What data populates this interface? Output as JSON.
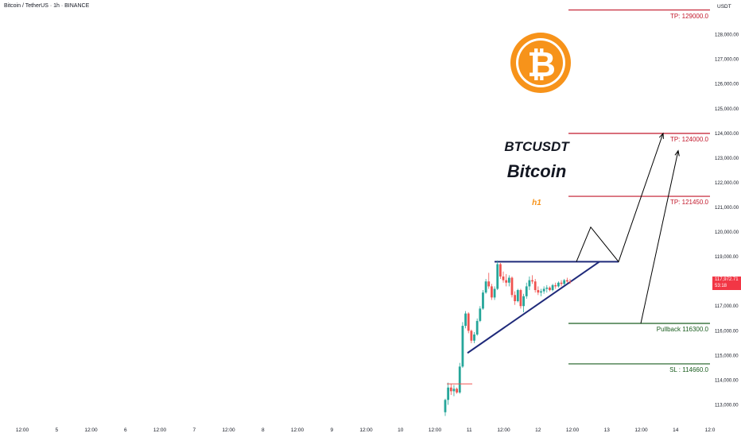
{
  "header": {
    "title": "Bitcoin / TetherUS · 1h · BINANCE",
    "currency": "USDT"
  },
  "current_price": {
    "value": "117,972.71",
    "countdown": "53:18"
  },
  "annotations": {
    "symbol": "BTCUSDT",
    "name": "Bitcoin",
    "timeframe": "h1"
  },
  "levels": [
    {
      "name": "tp3",
      "label": "TP: 129000.0",
      "price": 129000,
      "color": "#c2182b"
    },
    {
      "name": "tp2",
      "label": "TP: 124000.0",
      "price": 124000,
      "color": "#c2182b"
    },
    {
      "name": "tp1",
      "label": "TP: 121450.0",
      "price": 121450,
      "color": "#c2182b"
    },
    {
      "name": "pullback",
      "label": "Pullback 116300.0",
      "price": 116300,
      "color": "#1b5e20"
    },
    {
      "name": "sl",
      "label": "SL : 114660.0",
      "price": 114660,
      "color": "#1b5e20"
    }
  ],
  "colors": {
    "up": "#26a69a",
    "down": "#ef5350",
    "trendline": "#1f2a7a",
    "logo": "#f7931a"
  },
  "chart_data": {
    "type": "candlestick",
    "ylim": [
      112500,
      128600
    ],
    "y_ticks": [
      113000,
      114000,
      115000,
      116000,
      117000,
      118000,
      119000,
      120000,
      121000,
      122000,
      123000,
      124000,
      125000,
      126000,
      127000,
      128000
    ],
    "y_tick_labels": [
      "113,000.00",
      "114,000.00",
      "115,000.00",
      "116,000.00",
      "117,000.00",
      "118,000.00",
      "119,000.00",
      "120,000.00",
      "121,000.00",
      "122,000.00",
      "123,000.00",
      "124,000.00",
      "125,000.00",
      "126,000.00",
      "127,000.00",
      "128,000.00"
    ],
    "x_tick_labels": [
      "12:00",
      "5",
      "12:00",
      "6",
      "12:00",
      "7",
      "12:00",
      "8",
      "12:00",
      "9",
      "12:00",
      "10",
      "12:00",
      "11",
      "12:00",
      "12",
      "12:00",
      "13",
      "12:00",
      "14",
      "12:0"
    ],
    "candles": [
      {
        "o": 112700,
        "h": 113250,
        "l": 112550,
        "c": 113200
      },
      {
        "o": 113200,
        "h": 113900,
        "l": 113000,
        "c": 113700
      },
      {
        "o": 113700,
        "h": 113850,
        "l": 113400,
        "c": 113550
      },
      {
        "o": 113550,
        "h": 113800,
        "l": 113350,
        "c": 113650
      },
      {
        "o": 113650,
        "h": 113700,
        "l": 113450,
        "c": 113500
      },
      {
        "o": 113500,
        "h": 114700,
        "l": 113450,
        "c": 114550
      },
      {
        "o": 114550,
        "h": 116350,
        "l": 114500,
        "c": 116200
      },
      {
        "o": 116200,
        "h": 116800,
        "l": 116100,
        "c": 116700
      },
      {
        "o": 116700,
        "h": 116750,
        "l": 115900,
        "c": 116000
      },
      {
        "o": 116000,
        "h": 116050,
        "l": 115500,
        "c": 115600
      },
      {
        "o": 115600,
        "h": 115950,
        "l": 115500,
        "c": 115850
      },
      {
        "o": 115850,
        "h": 116500,
        "l": 115800,
        "c": 116400
      },
      {
        "o": 116400,
        "h": 117000,
        "l": 116350,
        "c": 116900
      },
      {
        "o": 116900,
        "h": 117650,
        "l": 116850,
        "c": 117550
      },
      {
        "o": 117550,
        "h": 118100,
        "l": 117500,
        "c": 118000
      },
      {
        "o": 118000,
        "h": 118350,
        "l": 117700,
        "c": 117800
      },
      {
        "o": 117800,
        "h": 117900,
        "l": 117250,
        "c": 117350
      },
      {
        "o": 117350,
        "h": 117800,
        "l": 117250,
        "c": 117700
      },
      {
        "o": 117700,
        "h": 118850,
        "l": 117650,
        "c": 118700
      },
      {
        "o": 118700,
        "h": 118750,
        "l": 118100,
        "c": 118200
      },
      {
        "o": 118200,
        "h": 118400,
        "l": 117950,
        "c": 118050
      },
      {
        "o": 118050,
        "h": 118300,
        "l": 117800,
        "c": 117950
      },
      {
        "o": 117950,
        "h": 118250,
        "l": 117800,
        "c": 118150
      },
      {
        "o": 118150,
        "h": 118200,
        "l": 117350,
        "c": 117450
      },
      {
        "o": 117450,
        "h": 117600,
        "l": 117050,
        "c": 117200
      },
      {
        "o": 117200,
        "h": 117700,
        "l": 117150,
        "c": 117650
      },
      {
        "o": 117650,
        "h": 117700,
        "l": 116900,
        "c": 117000
      },
      {
        "o": 117000,
        "h": 117500,
        "l": 116750,
        "c": 117400
      },
      {
        "o": 117400,
        "h": 117950,
        "l": 117300,
        "c": 117800
      },
      {
        "o": 117800,
        "h": 118200,
        "l": 117650,
        "c": 118050
      },
      {
        "o": 118050,
        "h": 118250,
        "l": 117900,
        "c": 118000
      },
      {
        "o": 118000,
        "h": 118100,
        "l": 117550,
        "c": 117650
      },
      {
        "o": 117650,
        "h": 117800,
        "l": 117450,
        "c": 117550
      },
      {
        "o": 117550,
        "h": 117700,
        "l": 117400,
        "c": 117600
      },
      {
        "o": 117600,
        "h": 117800,
        "l": 117500,
        "c": 117700
      },
      {
        "o": 117700,
        "h": 117850,
        "l": 117550,
        "c": 117750
      },
      {
        "o": 117750,
        "h": 117800,
        "l": 117600,
        "c": 117650
      },
      {
        "o": 117650,
        "h": 117900,
        "l": 117600,
        "c": 117850
      },
      {
        "o": 117850,
        "h": 117950,
        "l": 117700,
        "c": 117800
      },
      {
        "o": 117800,
        "h": 118000,
        "l": 117750,
        "c": 117950
      },
      {
        "o": 117950,
        "h": 118050,
        "l": 117800,
        "c": 117900
      },
      {
        "o": 117900,
        "h": 118100,
        "l": 117850,
        "c": 118050
      },
      {
        "o": 118050,
        "h": 118150,
        "l": 117950,
        "c": 118000
      },
      {
        "o": 118000,
        "h": 118100,
        "l": 117900,
        "c": 117972.71
      }
    ],
    "breakout_level": 118800,
    "rising_trendline": {
      "from": 115100,
      "to": 118800
    },
    "projection": [
      118800,
      120200,
      118800,
      124000
    ],
    "pullback_projection": [
      116300,
      123300
    ],
    "grid": false
  }
}
